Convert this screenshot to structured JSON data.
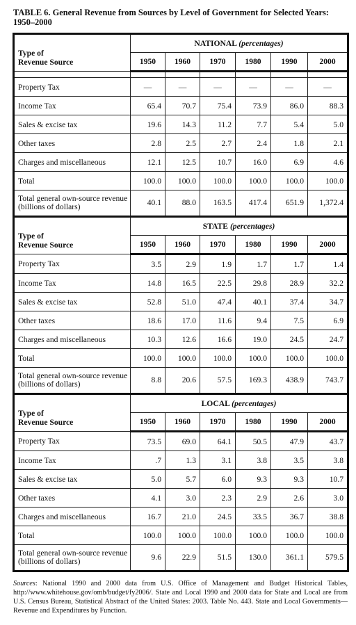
{
  "caption": "TABLE 6. General Revenue from Sources by Level of Government for Selected Years: 1950–2000",
  "type_label_line1": "Type of",
  "type_label_line2": "Revenue Source",
  "years": [
    "1950",
    "1960",
    "1970",
    "1980",
    "1990",
    "2000"
  ],
  "sections": [
    {
      "name": "NATIONAL",
      "unit": "(percentages)",
      "rows": [
        {
          "label": "Property Tax",
          "values": [
            "—",
            "—",
            "—",
            "—",
            "—",
            "—"
          ]
        },
        {
          "label": "Income Tax",
          "values": [
            "65.4",
            "70.7",
            "75.4",
            "73.9",
            "86.0",
            "88.3"
          ]
        },
        {
          "label": "Sales & excise tax",
          "values": [
            "19.6",
            "14.3",
            "11.2",
            "7.7",
            "5.4",
            "5.0"
          ]
        },
        {
          "label": "Other taxes",
          "values": [
            "2.8",
            "2.5",
            "2.7",
            "2.4",
            "1.8",
            "2.1"
          ]
        },
        {
          "label": "Charges and miscellaneous",
          "values": [
            "12.1",
            "12.5",
            "10.7",
            "16.0",
            "6.9",
            "4.6"
          ]
        },
        {
          "label": "Total",
          "values": [
            "100.0",
            "100.0",
            "100.0",
            "100.0",
            "100.0",
            "100.0"
          ]
        },
        {
          "label": "Total general own-source revenue (billions of dollars)",
          "values": [
            "40.1",
            "88.0",
            "163.5",
            "417.4",
            "651.9",
            "1,372.4"
          ]
        }
      ]
    },
    {
      "name": "STATE",
      "unit": "(percentages)",
      "rows": [
        {
          "label": "Property Tax",
          "values": [
            "3.5",
            "2.9",
            "1.9",
            "1.7",
            "1.7",
            "1.4"
          ]
        },
        {
          "label": "Income Tax",
          "values": [
            "14.8",
            "16.5",
            "22.5",
            "29.8",
            "28.9",
            "32.2"
          ]
        },
        {
          "label": "Sales & excise tax",
          "values": [
            "52.8",
            "51.0",
            "47.4",
            "40.1",
            "37.4",
            "34.7"
          ]
        },
        {
          "label": "Other taxes",
          "values": [
            "18.6",
            "17.0",
            "11.6",
            "9.4",
            "7.5",
            "6.9"
          ]
        },
        {
          "label": "Charges and miscellaneous",
          "values": [
            "10.3",
            "12.6",
            "16.6",
            "19.0",
            "24.5",
            "24.7"
          ]
        },
        {
          "label": "Total",
          "values": [
            "100.0",
            "100.0",
            "100.0",
            "100.0",
            "100.0",
            "100.0"
          ]
        },
        {
          "label": "Total general own-source revenue (billions of dollars)",
          "values": [
            "8.8",
            "20.6",
            "57.5",
            "169.3",
            "438.9",
            "743.7"
          ]
        }
      ]
    },
    {
      "name": "LOCAL",
      "unit": "(percentages)",
      "rows": [
        {
          "label": "Property Tax",
          "values": [
            "73.5",
            "69.0",
            "64.1",
            "50.5",
            "47.9",
            "43.7"
          ]
        },
        {
          "label": "Income Tax",
          "values": [
            ".7",
            "1.3",
            "3.1",
            "3.8",
            "3.5",
            "3.8"
          ]
        },
        {
          "label": "Sales & excise tax",
          "values": [
            "5.0",
            "5.7",
            "6.0",
            "9.3",
            "9.3",
            "10.7"
          ]
        },
        {
          "label": "Other taxes",
          "values": [
            "4.1",
            "3.0",
            "2.3",
            "2.9",
            "2.6",
            "3.0"
          ]
        },
        {
          "label": "Charges and miscellaneous",
          "values": [
            "16.7",
            "21.0",
            "24.5",
            "33.5",
            "36.7",
            "38.8"
          ]
        },
        {
          "label": "Total",
          "values": [
            "100.0",
            "100.0",
            "100.0",
            "100.0",
            "100.0",
            "100.0"
          ]
        },
        {
          "label": "Total general own-source revenue (billions of dollars)",
          "values": [
            "9.6",
            "22.9",
            "51.5",
            "130.0",
            "361.1",
            "579.5"
          ]
        }
      ]
    }
  ],
  "footer": {
    "sources_label": "Sources",
    "text": ": National 1990 and 2000 data from U.S. Office of Management and Budget Historical Tables, http://www.whitehouse.gov/omb/budget/fy2006/. State and Local 1990 and 2000 data for State and Local are from U.S. Census Bureau, Statistical Abstract of the United States: 2003. Table No. 443. State and Local Governments— Revenue and Expenditures by Function."
  }
}
